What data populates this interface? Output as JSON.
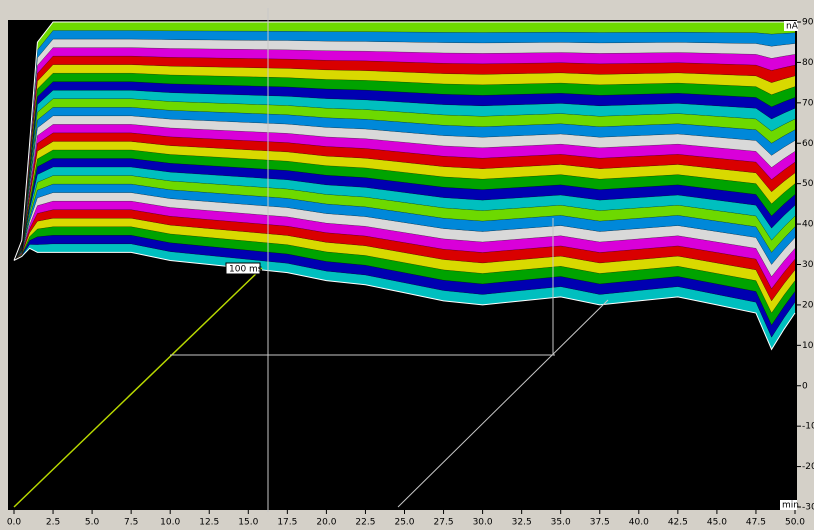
{
  "chart_data": {
    "type": "waterfall",
    "x_unit": "min",
    "y_unit": "nA",
    "trace_label": "100 ms",
    "x": [
      0,
      0.5,
      1,
      1.5,
      2.5,
      5,
      7.5,
      10,
      12.5,
      15,
      17.5,
      20,
      22.5,
      25,
      27.5,
      30,
      32.5,
      35,
      37.5,
      40,
      42.5,
      45,
      47.5,
      48.5,
      49.3,
      50
    ],
    "series": [
      {
        "color": "#ffffff",
        "values": [
          31,
          32,
          34,
          33,
          33,
          33,
          33,
          31,
          30,
          29,
          28,
          26,
          25,
          23,
          21,
          20,
          21,
          22,
          20,
          21,
          22,
          20,
          18,
          9,
          14,
          18
        ]
      },
      {
        "color": "#ffffff",
        "values": [
          31,
          36,
          60,
          85,
          90,
          90,
          90,
          90,
          90,
          90,
          90,
          90,
          90,
          90,
          90,
          90,
          90,
          90,
          90,
          90,
          90,
          90,
          90,
          90,
          90,
          90
        ]
      }
    ],
    "xlim": [
      0,
      50
    ],
    "ylim": [
      -30,
      90
    ],
    "xticks": [
      {
        "value": 0,
        "label": "0.0"
      },
      2.5,
      {
        "value": 5,
        "label": "5.0"
      },
      7.5,
      {
        "value": 10,
        "label": "10.0"
      },
      12.5,
      {
        "value": 15,
        "label": "15.0"
      },
      17.5,
      {
        "value": 20,
        "label": "20.0"
      },
      22.5,
      {
        "value": 25,
        "label": "25.0"
      },
      27.5,
      {
        "value": 30,
        "label": "30.0"
      },
      32.5,
      {
        "value": 35,
        "label": "35.0"
      },
      37.5,
      {
        "value": 40,
        "label": "40.0"
      },
      42.5,
      {
        "value": 45,
        "label": "45.0"
      },
      47.5,
      {
        "value": 50,
        "label": "50.0"
      }
    ],
    "yticks": [
      90,
      80,
      70,
      60,
      50,
      40,
      30,
      20,
      10,
      0,
      -10,
      -20,
      -30
    ]
  }
}
